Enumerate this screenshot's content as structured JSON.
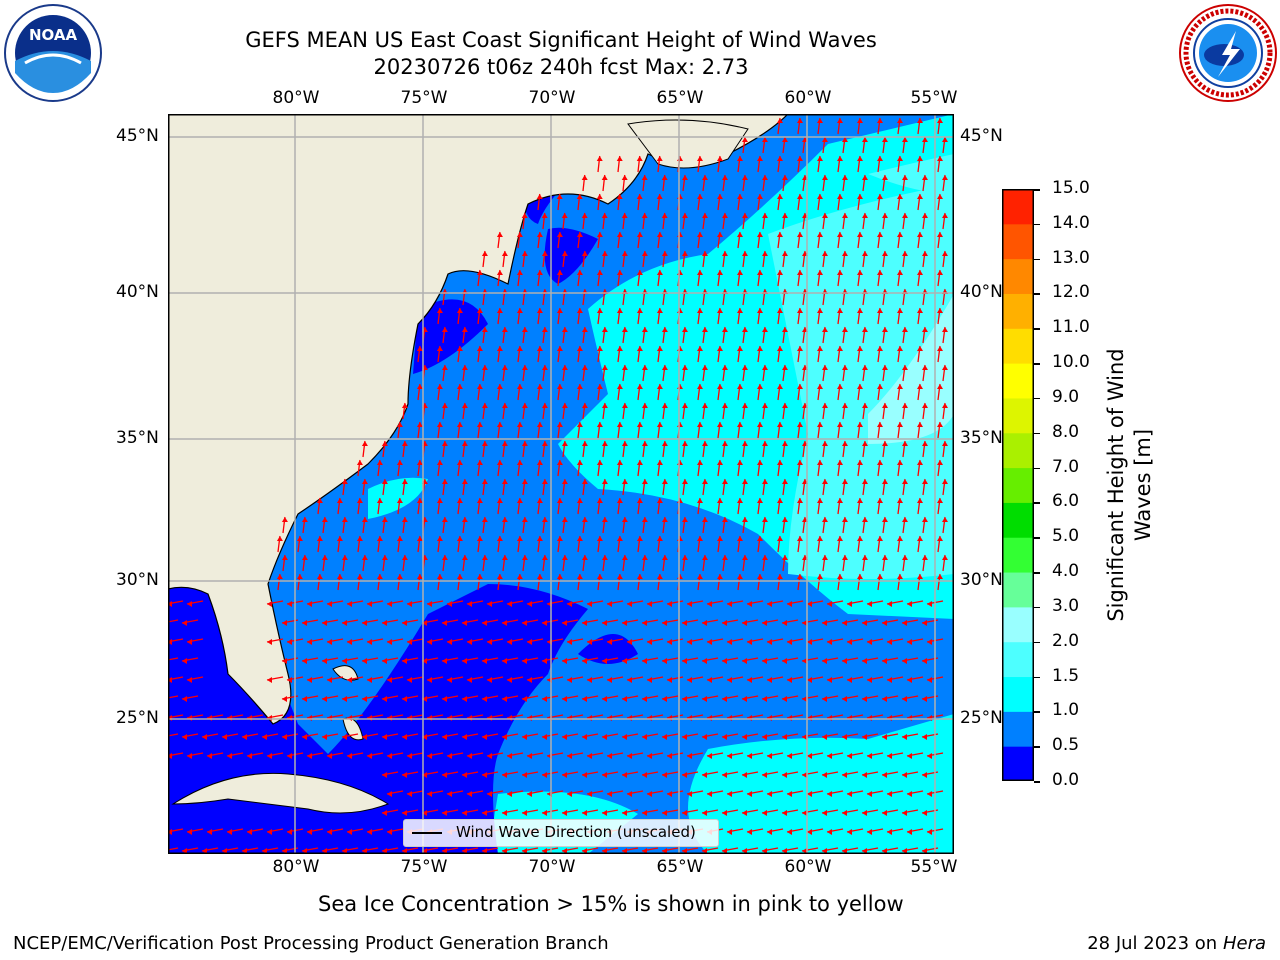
{
  "title": {
    "line1": "GEFS MEAN US East Coast Significant Height of Wind Waves",
    "line2": "20230726 t06z 240h fcst   Max: 2.73"
  },
  "logos": {
    "left": "noaa-logo",
    "left_text": "NOAA",
    "right": "national-weather-service-logo",
    "right_text": "NATIONAL WEATHER SERVICE"
  },
  "map": {
    "lon_labels": [
      "80°W",
      "75°W",
      "70°W",
      "65°W",
      "60°W",
      "55°W"
    ],
    "lat_labels": [
      "45°N",
      "40°N",
      "35°N",
      "30°N",
      "25°N"
    ],
    "legend": "Wind Wave Direction (unscaled)",
    "colors": {
      "land": "#efeddc",
      "lt05": "#0000ff",
      "lt10": "#0080ff",
      "lt15": "#00ffff",
      "lt20": "#4dffff",
      "lt30": "#99ffff",
      "arrow": "#ff0000",
      "grid": "#b0b0b0"
    }
  },
  "colorbar": {
    "label_line1": "Significant Height of Wind",
    "label_line2": "Waves [m]",
    "ticks": [
      "15.0",
      "14.0",
      "13.0",
      "12.0",
      "11.0",
      "10.0",
      "9.0",
      "8.0",
      "7.0",
      "6.0",
      "5.0",
      "4.0",
      "3.0",
      "2.0",
      "1.5",
      "1.0",
      "0.5",
      "0.0"
    ],
    "colors": [
      "#0000ff",
      "#0080ff",
      "#00ffff",
      "#4dffff",
      "#99ffff",
      "#66ff99",
      "#33ff33",
      "#00dd00",
      "#66ee00",
      "#aaf000",
      "#ddf500",
      "#ffff00",
      "#ffdd00",
      "#ffb000",
      "#ff8800",
      "#ff5500",
      "#ff2200"
    ]
  },
  "footer": {
    "note": "Sea Ice Concentration > 15% is shown in pink to yellow",
    "left": "NCEP/EMC/Verification Post Processing Product Generation Branch",
    "right_date": "28 Jul 2023 on ",
    "right_host": "Hera"
  }
}
